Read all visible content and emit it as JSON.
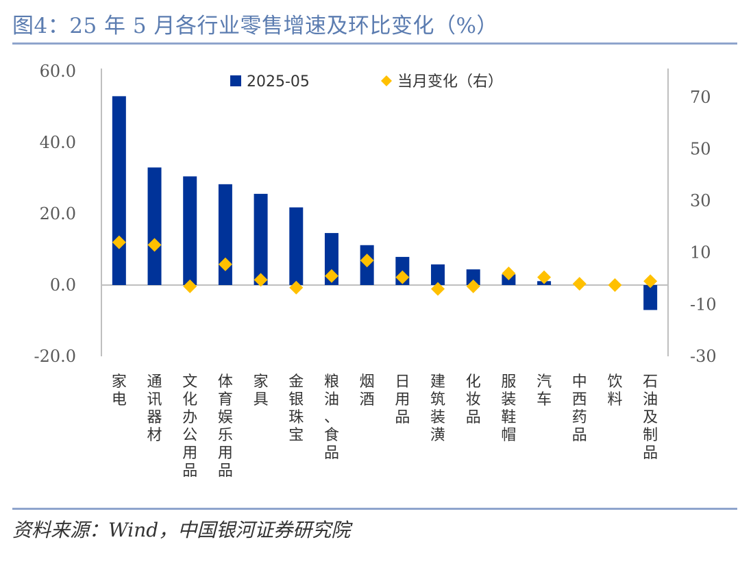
{
  "header": {
    "title": "图4：25 年 5 月各行业零售增速及环比变化（%）"
  },
  "footer": {
    "source": "资料来源：Wind，中国银河证券研究院"
  },
  "colors": {
    "bar": "#003399",
    "marker": "#FFC000",
    "rule": "#8EA4CC",
    "title": "#5B7CB0"
  },
  "chart_data": {
    "type": "bar",
    "categories": [
      "家电",
      "通讯器材",
      "文化办公用品",
      "体育娱乐用品",
      "家具",
      "金银珠宝",
      "粮油、食品",
      "烟酒",
      "日用品",
      "建筑装潢",
      "化妆品",
      "服装鞋帽",
      "汽车",
      "中西药品",
      "饮料",
      "石油及制品"
    ],
    "series": [
      {
        "name": "2025-05",
        "type": "bar",
        "axis": "left",
        "values": [
          53.0,
          33.0,
          30.5,
          28.3,
          25.6,
          21.8,
          14.6,
          11.2,
          7.9,
          5.8,
          4.4,
          3.0,
          1.1,
          0.0,
          0.0,
          -7.0
        ]
      },
      {
        "name": "当月变化（右）",
        "type": "scatter",
        "axis": "right",
        "marker": "diamond",
        "values": [
          14.0,
          13.0,
          -3.0,
          5.5,
          -0.5,
          -3.5,
          1.0,
          7.0,
          0.5,
          -4.0,
          -3.0,
          2.0,
          0.5,
          -2.0,
          -2.5,
          -1.0
        ]
      }
    ],
    "y_left": {
      "ylim": [
        -20,
        60
      ],
      "ticks": [
        "60.0",
        "40.0",
        "20.0",
        "0.0",
        "-20.0"
      ]
    },
    "y_right": {
      "ylim": [
        -30,
        80
      ],
      "ticks": [
        "70",
        "50",
        "30",
        "10",
        "-10",
        "-30"
      ]
    },
    "legend": {
      "placement": "top-center"
    },
    "grid": false
  }
}
